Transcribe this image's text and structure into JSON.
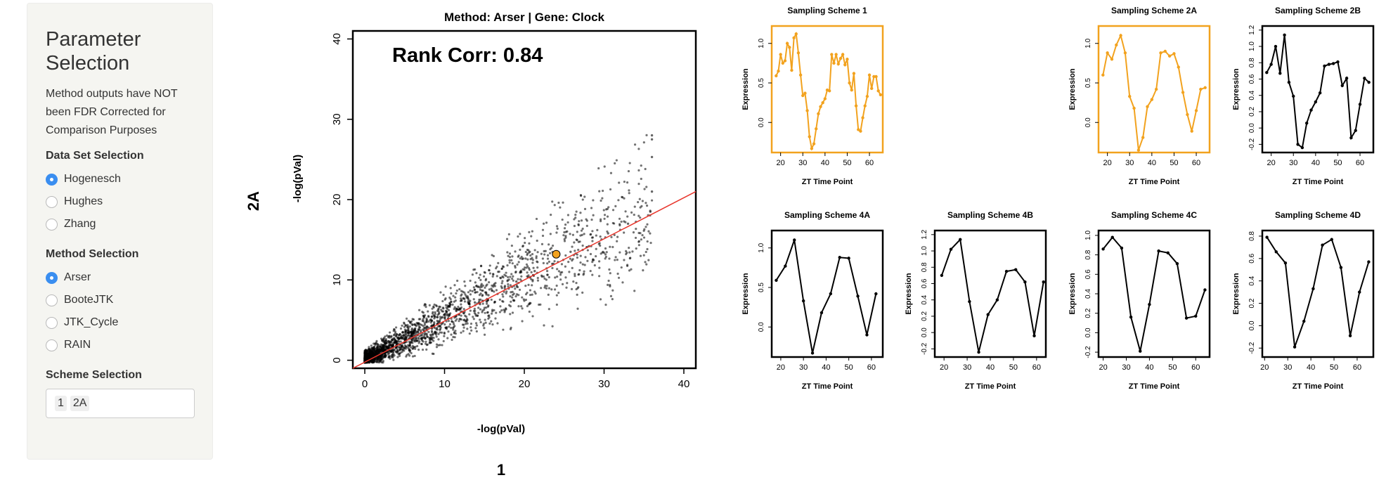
{
  "sidebar": {
    "title": "Parameter Selection",
    "title_line1": "Parameter",
    "title_line2": "Selection",
    "note": "Method outputs have NOT been FDR Corrected for Comparison Purposes",
    "dataset_label": "Data Set Selection",
    "datasets": [
      {
        "label": "Hogenesch",
        "checked": true
      },
      {
        "label": "Hughes",
        "checked": false
      },
      {
        "label": "Zhang",
        "checked": false
      }
    ],
    "method_label": "Method Selection",
    "methods": [
      {
        "label": "Arser",
        "checked": true
      },
      {
        "label": "BooteJTK",
        "checked": false
      },
      {
        "label": "JTK_Cycle",
        "checked": false
      },
      {
        "label": "RAIN",
        "checked": false
      }
    ],
    "scheme_label": "Scheme Selection",
    "scheme_chips": [
      "1",
      "2A"
    ]
  },
  "chart_data": [
    {
      "type": "scatter",
      "title": "Method: Arser | Gene: Clock",
      "annotation": "Rank Corr: 0.84",
      "xlabel": "-log(pVal)",
      "ylabel": "-log(pVal)",
      "outer_xlabel": "1",
      "outer_ylabel": "2A",
      "xlim": [
        -1.5,
        41.5
      ],
      "ylim": [
        -1,
        41
      ],
      "xticks": [
        0,
        10,
        20,
        30,
        40
      ],
      "yticks": [
        0,
        10,
        20,
        30,
        40
      ],
      "point_color": "#000000",
      "fit_line": {
        "x": [
          -1.5,
          41.5
        ],
        "y": [
          -1,
          21
        ],
        "color": "#e8362c"
      },
      "highlight_point": {
        "x": 24,
        "y": 13.2,
        "color": "#f2a21e"
      },
      "sample_points_x": [
        0.3,
        0.8,
        1.5,
        2.2,
        3.1,
        4.0,
        5.2,
        6.4,
        7.8,
        9.1,
        10.5,
        12.0,
        13.8,
        15.5,
        17.2,
        19.0,
        21.3,
        23.5,
        25.8,
        28.1,
        30.5,
        33.0,
        35.8,
        36.0,
        36.0,
        36.0,
        36.0
      ],
      "sample_points_y": [
        0.1,
        0.6,
        0.9,
        1.2,
        1.8,
        2.1,
        2.9,
        3.4,
        4.2,
        4.9,
        5.5,
        6.4,
        7.2,
        8.1,
        9.0,
        9.8,
        11.1,
        12.0,
        13.5,
        14.2,
        15.8,
        17.0,
        18.5,
        21.0,
        25.3,
        27.5,
        28.0
      ]
    },
    {
      "type": "line",
      "title": "Sampling Scheme 1",
      "xlabel": "ZT Time Point",
      "ylabel": "Expression",
      "color": "#f2a21e",
      "xlim": [
        16,
        66
      ],
      "ylim": [
        -0.38,
        1.22
      ],
      "xticks": [
        20,
        30,
        40,
        50,
        60
      ],
      "yticks": [
        0.0,
        0.5,
        1.0
      ],
      "x": [
        18,
        19,
        20,
        21,
        22,
        23,
        24,
        25,
        26,
        27,
        28,
        29,
        30,
        31,
        32,
        33,
        34,
        35,
        36,
        37,
        38,
        39,
        40,
        41,
        42,
        43,
        44,
        45,
        46,
        47,
        48,
        49,
        50,
        51,
        52,
        53,
        54,
        55,
        56,
        57,
        58,
        59,
        60,
        61,
        62,
        63,
        64,
        65
      ],
      "y": [
        0.59,
        0.65,
        0.86,
        0.75,
        0.78,
        1.0,
        0.95,
        0.66,
        1.07,
        1.12,
        0.88,
        0.6,
        0.34,
        0.37,
        0.15,
        -0.18,
        -0.33,
        -0.27,
        -0.08,
        0.11,
        0.2,
        0.25,
        0.3,
        0.41,
        0.4,
        0.86,
        0.75,
        0.86,
        0.74,
        0.81,
        0.86,
        0.73,
        0.8,
        0.5,
        0.41,
        0.62,
        0.21,
        -0.09,
        -0.11,
        0.06,
        0.21,
        0.33,
        0.6,
        0.43,
        0.58,
        0.58,
        0.4,
        0.35
      ]
    },
    {
      "type": "line",
      "title": "Sampling Scheme 2A",
      "xlabel": "ZT Time Point",
      "ylabel": "Expression",
      "color": "#f2a21e",
      "xlim": [
        16,
        66
      ],
      "ylim": [
        -0.38,
        1.22
      ],
      "xticks": [
        20,
        30,
        40,
        50,
        60
      ],
      "yticks": [
        0.0,
        0.5,
        1.0
      ],
      "x": [
        18,
        20,
        22,
        24,
        26,
        28,
        30,
        32,
        34,
        36,
        38,
        40,
        42,
        44,
        46,
        48,
        50,
        52,
        54,
        56,
        58,
        60,
        62,
        64
      ],
      "y": [
        0.6,
        0.88,
        0.8,
        0.98,
        1.1,
        0.88,
        0.33,
        0.18,
        -0.35,
        -0.19,
        0.2,
        0.29,
        0.42,
        0.88,
        0.9,
        0.84,
        0.87,
        0.7,
        0.38,
        0.1,
        -0.11,
        0.15,
        0.42,
        0.44
      ]
    },
    {
      "type": "line",
      "title": "Sampling Scheme 2B",
      "xlabel": "ZT Time Point",
      "ylabel": "Expression",
      "color": "#000000",
      "xlim": [
        16,
        66
      ],
      "ylim": [
        -0.3,
        1.25
      ],
      "xticks": [
        20,
        30,
        40,
        50,
        60
      ],
      "yticks": [
        -0.2,
        0.0,
        0.2,
        0.4,
        0.6,
        0.8,
        1.0,
        1.2
      ],
      "x": [
        18,
        20,
        22,
        24,
        26,
        28,
        30,
        32,
        34,
        36,
        38,
        40,
        42,
        44,
        46,
        48,
        50,
        52,
        54,
        56,
        58,
        60,
        62,
        64
      ],
      "y": [
        0.68,
        0.78,
        1.0,
        0.67,
        1.14,
        0.56,
        0.39,
        -0.2,
        -0.24,
        0.06,
        0.22,
        0.32,
        0.43,
        0.76,
        0.78,
        0.79,
        0.81,
        0.52,
        0.61,
        -0.12,
        -0.03,
        0.29,
        0.61,
        0.56
      ]
    },
    {
      "type": "line",
      "title": "Sampling Scheme 4A",
      "xlabel": "ZT Time Point",
      "ylabel": "Expression",
      "color": "#000000",
      "xlim": [
        16,
        65
      ],
      "ylim": [
        -0.38,
        1.22
      ],
      "xticks": [
        20,
        30,
        40,
        50,
        60
      ],
      "yticks": [
        0.0,
        0.5,
        1.0
      ],
      "x": [
        18,
        22,
        26,
        30,
        34,
        38,
        42,
        46,
        50,
        54,
        58,
        62
      ],
      "y": [
        0.59,
        0.77,
        1.1,
        0.33,
        -0.33,
        0.18,
        0.42,
        0.88,
        0.87,
        0.39,
        -0.1,
        0.42
      ]
    },
    {
      "type": "line",
      "title": "Sampling Scheme 4B",
      "xlabel": "ZT Time Point",
      "ylabel": "Expression",
      "color": "#000000",
      "xlim": [
        16,
        64
      ],
      "ylim": [
        -0.3,
        1.25
      ],
      "xticks": [
        20,
        30,
        40,
        50,
        60
      ],
      "yticks": [
        -0.2,
        0.0,
        0.2,
        0.4,
        0.6,
        0.8,
        1.0,
        1.2
      ],
      "x": [
        19,
        23,
        27,
        31,
        35,
        39,
        43,
        47,
        51,
        55,
        59,
        63
      ],
      "y": [
        0.7,
        1.02,
        1.14,
        0.38,
        -0.24,
        0.22,
        0.4,
        0.75,
        0.77,
        0.62,
        -0.04,
        0.62
      ]
    },
    {
      "type": "line",
      "title": "Sampling Scheme 4C",
      "xlabel": "ZT Time Point",
      "ylabel": "Expression",
      "color": "#000000",
      "xlim": [
        18,
        66
      ],
      "ylim": [
        -0.25,
        1.05
      ],
      "xticks": [
        20,
        30,
        40,
        50,
        60
      ],
      "yticks": [
        -0.2,
        0.0,
        0.2,
        0.4,
        0.6,
        0.8,
        1.0
      ],
      "x": [
        20,
        24,
        28,
        32,
        36,
        40,
        44,
        48,
        52,
        56,
        60,
        64
      ],
      "y": [
        0.86,
        0.98,
        0.87,
        0.16,
        -0.19,
        0.29,
        0.84,
        0.82,
        0.71,
        0.15,
        0.17,
        0.44
      ]
    },
    {
      "type": "line",
      "title": "Sampling Scheme 4D",
      "xlabel": "ZT Time Point",
      "ylabel": "Expression",
      "color": "#000000",
      "xlim": [
        19,
        67
      ],
      "ylim": [
        -0.28,
        0.85
      ],
      "xticks": [
        20,
        30,
        40,
        50,
        60
      ],
      "yticks": [
        -0.2,
        0.0,
        0.2,
        0.4,
        0.6,
        0.8
      ],
      "x": [
        21,
        25,
        29,
        33,
        37,
        41,
        45,
        49,
        53,
        57,
        61,
        65
      ],
      "y": [
        0.79,
        0.66,
        0.56,
        -0.19,
        0.04,
        0.33,
        0.72,
        0.77,
        0.52,
        -0.09,
        0.3,
        0.57
      ]
    }
  ]
}
